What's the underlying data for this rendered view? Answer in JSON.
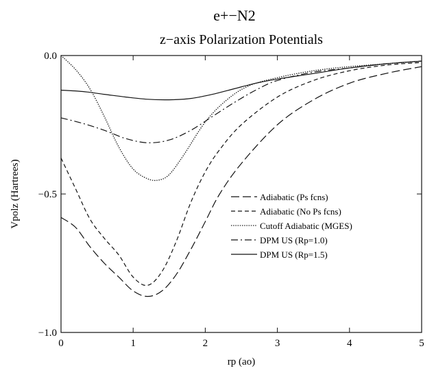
{
  "chart_data": {
    "type": "line",
    "title": "e+−N2",
    "subtitle": "z−axis Polarization Potentials",
    "xlabel": "rp (ao)",
    "ylabel": "Vpolz (Hartrees)",
    "xlim": [
      0,
      5
    ],
    "ylim": [
      -1.0,
      0.0
    ],
    "x_ticks": [
      "0",
      "1",
      "2",
      "3",
      "4",
      "5"
    ],
    "y_ticks": [
      "0.0",
      "−0.5",
      "−1.0"
    ],
    "grid": false,
    "legend_position": "center-right",
    "series": [
      {
        "name": "Adiabatic (Ps fcns)",
        "style": "long-dash",
        "x": [
          0,
          0.2,
          0.4,
          0.6,
          0.8,
          1.0,
          1.2,
          1.4,
          1.6,
          1.8,
          2.0,
          2.2,
          2.5,
          3.0,
          3.5,
          4.0,
          4.5,
          5.0
        ],
        "y": [
          -0.585,
          -0.62,
          -0.69,
          -0.75,
          -0.8,
          -0.85,
          -0.87,
          -0.85,
          -0.79,
          -0.7,
          -0.6,
          -0.5,
          -0.39,
          -0.25,
          -0.16,
          -0.1,
          -0.065,
          -0.04
        ]
      },
      {
        "name": "Adiabatic (No Ps fcns)",
        "style": "short-dash",
        "x": [
          0,
          0.2,
          0.4,
          0.6,
          0.8,
          1.0,
          1.2,
          1.4,
          1.6,
          1.8,
          2.0,
          2.2,
          2.5,
          3.0,
          3.5,
          4.0,
          4.5,
          5.0
        ],
        "y": [
          -0.37,
          -0.48,
          -0.59,
          -0.66,
          -0.72,
          -0.8,
          -0.83,
          -0.78,
          -0.67,
          -0.53,
          -0.42,
          -0.34,
          -0.25,
          -0.15,
          -0.09,
          -0.055,
          -0.035,
          -0.025
        ]
      },
      {
        "name": "Cutoff Adiabatic (MGES)",
        "style": "dotted",
        "x": [
          0,
          0.2,
          0.4,
          0.6,
          0.8,
          1.0,
          1.2,
          1.35,
          1.5,
          1.7,
          2.0,
          2.3,
          2.6,
          3.0,
          3.5,
          4.0,
          4.5,
          5.0
        ],
        "y": [
          0.0,
          -0.05,
          -0.12,
          -0.22,
          -0.33,
          -0.41,
          -0.445,
          -0.45,
          -0.43,
          -0.36,
          -0.24,
          -0.16,
          -0.11,
          -0.08,
          -0.055,
          -0.04,
          -0.03,
          -0.02
        ]
      },
      {
        "name": "DPM US (Rp=1.0)",
        "style": "dash-dot",
        "x": [
          0,
          0.3,
          0.6,
          0.9,
          1.2,
          1.5,
          1.8,
          2.1,
          2.4,
          2.7,
          3.0,
          3.5,
          4.0,
          4.5,
          5.0
        ],
        "y": [
          -0.225,
          -0.245,
          -0.27,
          -0.3,
          -0.315,
          -0.305,
          -0.27,
          -0.22,
          -0.17,
          -0.125,
          -0.09,
          -0.06,
          -0.045,
          -0.03,
          -0.02
        ]
      },
      {
        "name": "DPM US (Rp=1.5)",
        "style": "solid",
        "x": [
          0,
          0.3,
          0.6,
          0.9,
          1.2,
          1.5,
          1.8,
          2.1,
          2.4,
          2.7,
          3.0,
          3.5,
          4.0,
          4.5,
          5.0
        ],
        "y": [
          -0.125,
          -0.13,
          -0.14,
          -0.15,
          -0.158,
          -0.16,
          -0.155,
          -0.14,
          -0.12,
          -0.1,
          -0.085,
          -0.065,
          -0.045,
          -0.03,
          -0.02
        ]
      }
    ]
  }
}
